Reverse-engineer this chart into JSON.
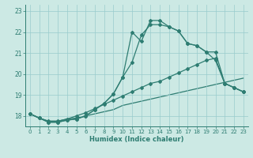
{
  "xlabel": "Humidex (Indice chaleur)",
  "background_color": "#cce9e4",
  "grid_color": "#99cccc",
  "line_color": "#2e7d72",
  "xlim": [
    -0.5,
    23.5
  ],
  "ylim": [
    17.5,
    23.3
  ],
  "xticks": [
    0,
    1,
    2,
    3,
    4,
    5,
    6,
    7,
    8,
    9,
    10,
    11,
    12,
    13,
    14,
    15,
    16,
    17,
    18,
    19,
    20,
    21,
    22,
    23
  ],
  "yticks": [
    18,
    19,
    20,
    21,
    22,
    23
  ],
  "line1_x": [
    0,
    1,
    2,
    3,
    4,
    5,
    6,
    7,
    8,
    9,
    10,
    11,
    12,
    13,
    14,
    15,
    16,
    17,
    18,
    19,
    20,
    21,
    22,
    23
  ],
  "line1_y": [
    18.1,
    17.9,
    17.7,
    17.7,
    17.8,
    17.85,
    18.0,
    18.3,
    18.6,
    19.05,
    19.85,
    22.0,
    21.55,
    22.55,
    22.55,
    22.25,
    22.05,
    21.45,
    21.35,
    21.05,
    21.05,
    19.55,
    19.35,
    19.15
  ],
  "line2_x": [
    0,
    1,
    2,
    3,
    4,
    5,
    6,
    7,
    8,
    9,
    10,
    11,
    12,
    13,
    14,
    15,
    16,
    17,
    18,
    19,
    20,
    21,
    22,
    23
  ],
  "line2_y": [
    18.1,
    17.9,
    17.7,
    17.7,
    17.8,
    17.85,
    18.0,
    18.3,
    18.6,
    19.05,
    19.85,
    20.55,
    21.85,
    22.35,
    22.35,
    22.25,
    22.05,
    21.45,
    21.35,
    21.05,
    20.65,
    19.55,
    19.35,
    19.15
  ],
  "line3_x": [
    0,
    1,
    2,
    3,
    4,
    5,
    6,
    7,
    8,
    9,
    10,
    11,
    12,
    13,
    14,
    15,
    16,
    17,
    18,
    19,
    20,
    21,
    22,
    23
  ],
  "line3_y": [
    18.1,
    17.9,
    17.75,
    17.75,
    17.85,
    18.0,
    18.15,
    18.35,
    18.55,
    18.75,
    18.95,
    19.15,
    19.35,
    19.55,
    19.65,
    19.85,
    20.05,
    20.25,
    20.45,
    20.65,
    20.75,
    19.55,
    19.35,
    19.15
  ],
  "line4_x": [
    0,
    1,
    2,
    3,
    4,
    5,
    6,
    7,
    8,
    9,
    10,
    11,
    12,
    13,
    14,
    15,
    16,
    17,
    18,
    19,
    20,
    21,
    22,
    23
  ],
  "line4_y": [
    18.1,
    17.9,
    17.75,
    17.75,
    17.85,
    17.9,
    18.0,
    18.1,
    18.2,
    18.3,
    18.5,
    18.6,
    18.7,
    18.8,
    18.9,
    19.0,
    19.1,
    19.2,
    19.3,
    19.4,
    19.5,
    19.6,
    19.7,
    19.8
  ]
}
